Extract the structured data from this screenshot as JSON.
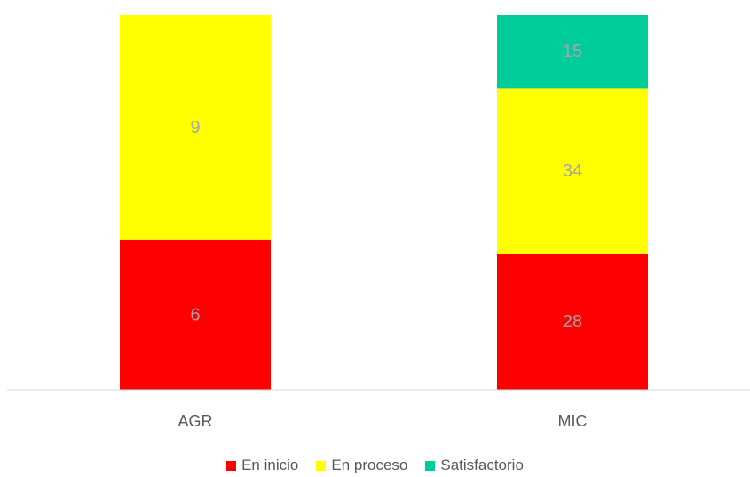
{
  "chart_data": {
    "type": "bar",
    "stacked": true,
    "categories": [
      "AGR",
      "MIC"
    ],
    "series": [
      {
        "name": "En inicio",
        "color": "#ff0000",
        "values": [
          6,
          28
        ]
      },
      {
        "name": "En proceso",
        "color": "#ffff00",
        "values": [
          9,
          34
        ]
      },
      {
        "name": "Satisfactorio",
        "color": "#00cc99",
        "values": [
          0,
          15
        ]
      }
    ],
    "data_labels": true,
    "legend_position": "bottom",
    "grid": false
  }
}
